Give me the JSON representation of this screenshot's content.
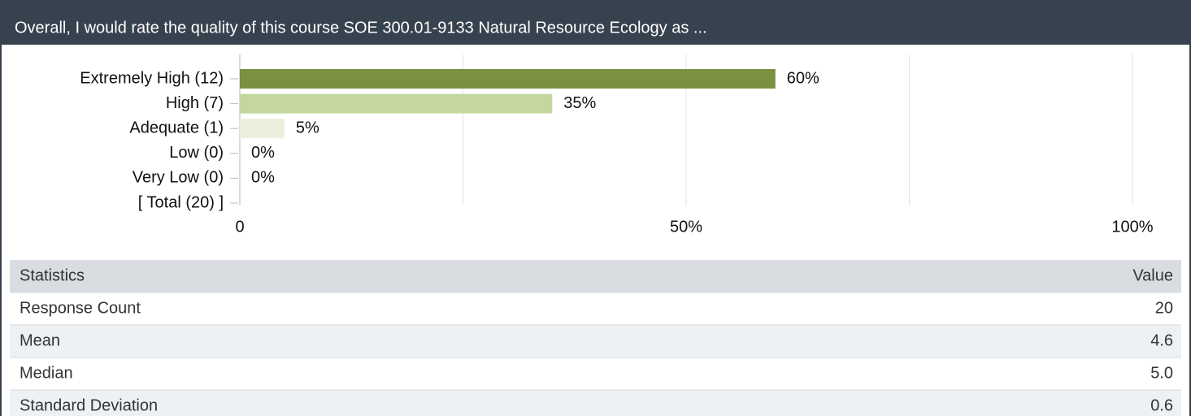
{
  "chart_data": {
    "type": "bar",
    "orientation": "horizontal",
    "title": "Overall, I would rate the quality of this course SOE 300.01-9133 Natural Resource Ecology as ...",
    "categories": [
      "Extremely High (12)",
      "High (7)",
      "Adequate (1)",
      "Low (0)",
      "Very Low (0)",
      "[ Total (20) ]"
    ],
    "values": [
      60,
      35,
      5,
      0,
      0,
      null
    ],
    "value_labels": [
      "60%",
      "35%",
      "5%",
      "0%",
      "0%",
      null
    ],
    "colors": [
      "#7b9141",
      "#c4d89d",
      "#ebf0de",
      "#ebf0de",
      "#ebf0de",
      null
    ],
    "xlim": [
      0,
      100
    ],
    "xticks": [
      0,
      {
        "value": 50,
        "label": "50%"
      },
      {
        "value": 100,
        "label": "100%"
      }
    ],
    "minor_xticks": [
      25,
      75
    ],
    "grid": true
  },
  "table": {
    "header": [
      "Statistics",
      "Value"
    ],
    "rows": [
      [
        "Response Count",
        "20"
      ],
      [
        "Mean",
        "4.6"
      ],
      [
        "Median",
        "5.0"
      ],
      [
        "Standard Deviation",
        "0.6"
      ]
    ]
  }
}
